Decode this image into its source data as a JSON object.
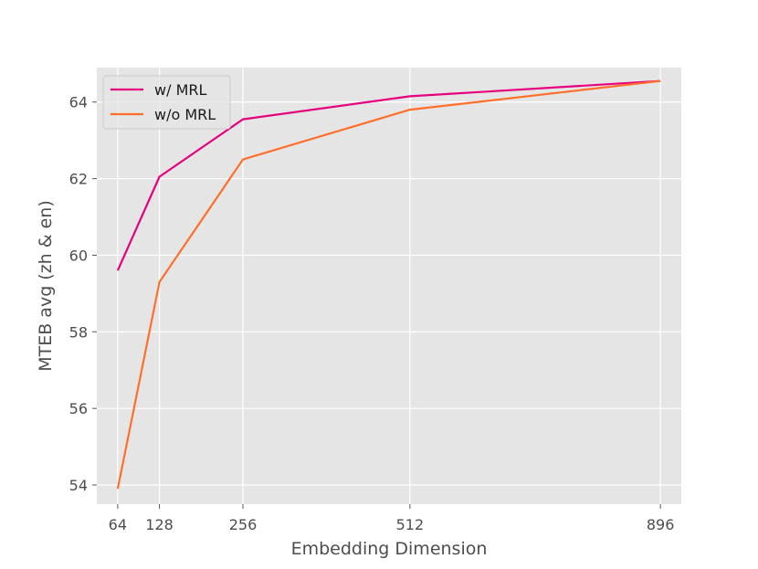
{
  "chart_data": {
    "type": "line",
    "title": "",
    "xlabel": "Embedding Dimension",
    "ylabel": "MTEB avg (zh & en)",
    "x": [
      64,
      128,
      256,
      512,
      896
    ],
    "x_ticks": [
      64,
      128,
      256,
      512,
      896
    ],
    "y_ticks": [
      54,
      56,
      58,
      60,
      62,
      64
    ],
    "xlim": [
      32,
      928
    ],
    "ylim": [
      53.5,
      64.9
    ],
    "grid": true,
    "legend_position": "top-left",
    "series": [
      {
        "name": "w/ MRL",
        "color": "#e6007e",
        "values": [
          59.6,
          62.05,
          63.55,
          64.15,
          64.55
        ]
      },
      {
        "name": "w/o MRL",
        "color": "#ff6f2c",
        "values": [
          53.9,
          59.3,
          62.5,
          63.8,
          64.55
        ]
      }
    ]
  }
}
